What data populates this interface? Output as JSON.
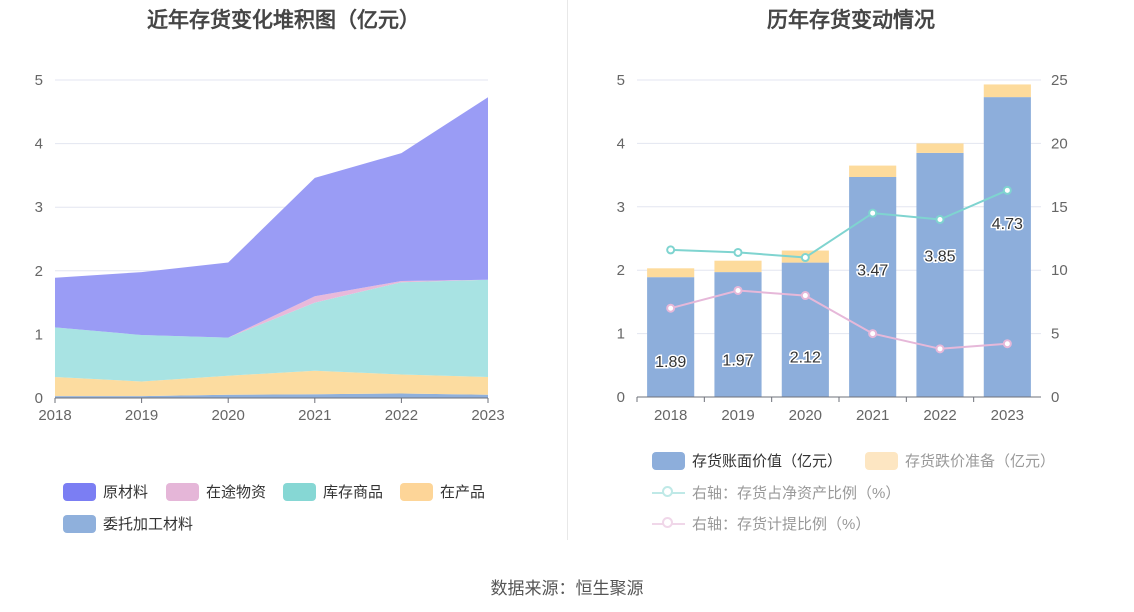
{
  "left": {
    "title": "近年存货变化堆积图（亿元）",
    "legend": [
      "原材料",
      "在途物资",
      "库存商品",
      "在产品",
      "委托加工材料"
    ]
  },
  "right": {
    "title": "历年存货变动情况",
    "legend": [
      "存货账面价值（亿元）",
      "存货跌价准备（亿元）",
      "右轴：存货占净资产比例（%）",
      "右轴：存货计提比例（%）"
    ]
  },
  "source": "数据来源：恒生聚源",
  "chart_data": [
    {
      "type": "area",
      "title": "近年存货变化堆积图（亿元）",
      "stacked": true,
      "x": [
        "2018",
        "2019",
        "2020",
        "2021",
        "2022",
        "2023"
      ],
      "ylim": [
        0,
        5
      ],
      "yticks": [
        0,
        1,
        2,
        3,
        4,
        5
      ],
      "grid": true,
      "legend_position": "bottom",
      "series": [
        {
          "name": "委托加工材料",
          "color": "#8fb0dc",
          "values": [
            0.03,
            0.03,
            0.05,
            0.06,
            0.07,
            0.05
          ]
        },
        {
          "name": "在产品",
          "color": "#fcdca0",
          "values": [
            0.3,
            0.23,
            0.3,
            0.37,
            0.3,
            0.28
          ]
        },
        {
          "name": "库存商品",
          "color": "#a8e3e3",
          "values": [
            0.78,
            0.73,
            0.6,
            1.07,
            1.45,
            1.53
          ]
        },
        {
          "name": "在途物资",
          "color": "#e8b9da",
          "values": [
            0.0,
            0.0,
            0.0,
            0.1,
            0.02,
            0.0
          ]
        },
        {
          "name": "原材料",
          "color": "#9a9cf5",
          "values": [
            0.78,
            0.99,
            1.18,
            1.86,
            2.01,
            2.87
          ]
        }
      ]
    },
    {
      "type": "bar",
      "title": "历年存货变动情况",
      "stacked": true,
      "categories": [
        "2018",
        "2019",
        "2020",
        "2021",
        "2022",
        "2023"
      ],
      "ylim": [
        0,
        5
      ],
      "yticks": [
        0,
        1,
        2,
        3,
        4,
        5
      ],
      "y2lim": [
        0,
        25
      ],
      "y2ticks": [
        0,
        5,
        10,
        15,
        20,
        25
      ],
      "grid": true,
      "legend_position": "bottom",
      "series": [
        {
          "name": "存货账面价值（亿元）",
          "type": "bar",
          "axis": "left",
          "color": "#8daedb",
          "values": [
            1.89,
            1.97,
            2.12,
            3.47,
            3.85,
            4.73
          ],
          "labels": [
            "1.89",
            "1.97",
            "2.12",
            "3.47",
            "3.85",
            "4.73"
          ]
        },
        {
          "name": "存货跌价准备（亿元）",
          "type": "bar",
          "axis": "left",
          "color": "#fddb9c",
          "values": [
            0.14,
            0.18,
            0.19,
            0.18,
            0.15,
            0.2
          ]
        },
        {
          "name": "右轴：存货占净资产比例（%）",
          "type": "line",
          "axis": "right",
          "color": "#7fd4d0",
          "values": [
            11.6,
            11.4,
            11.0,
            14.5,
            14.0,
            16.3
          ]
        },
        {
          "name": "右轴：存货计提比例（%）",
          "type": "line",
          "axis": "right",
          "color": "#e6b8d9",
          "values": [
            7.0,
            8.4,
            8.0,
            5.0,
            3.8,
            4.2
          ]
        }
      ]
    }
  ]
}
